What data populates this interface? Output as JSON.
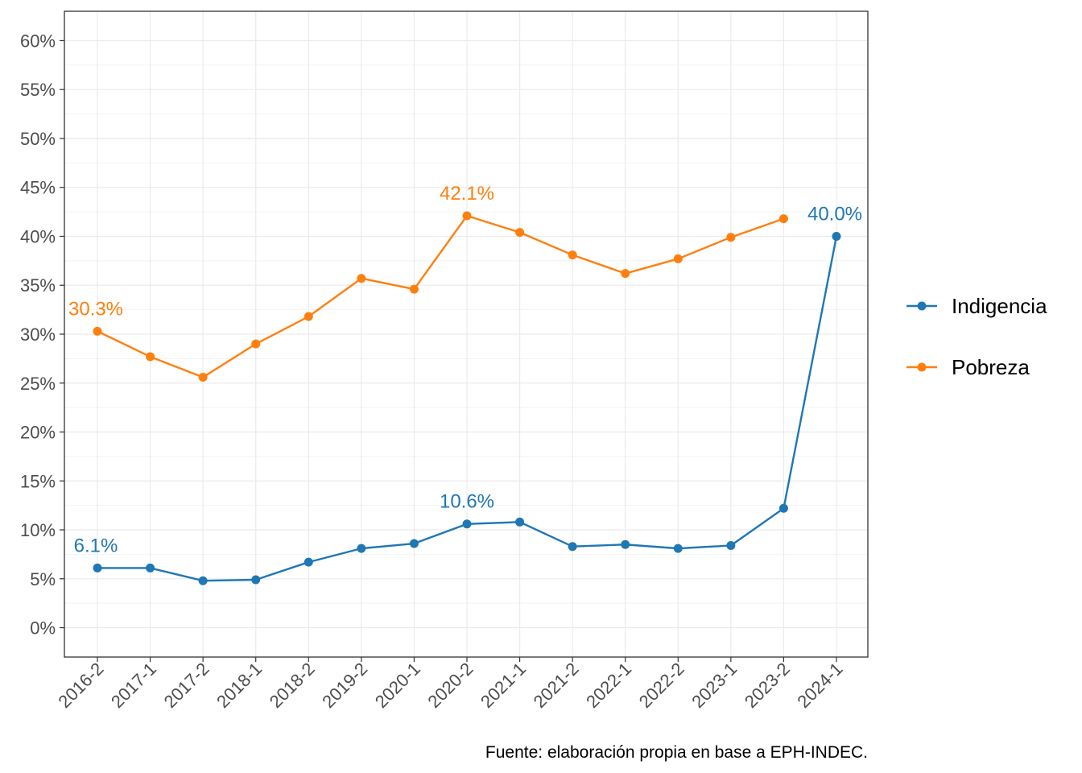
{
  "chart_data": {
    "type": "line",
    "categories": [
      "2016-2",
      "2017-1",
      "2017-2",
      "2018-1",
      "2018-2",
      "2019-2",
      "2020-1",
      "2020-2",
      "2021-1",
      "2021-2",
      "2022-1",
      "2022-2",
      "2023-1",
      "2023-2",
      "2024-1"
    ],
    "series": [
      {
        "name": "Indigencia",
        "color": "#1f77b4",
        "values": [
          6.1,
          6.1,
          4.8,
          4.9,
          6.7,
          8.1,
          8.6,
          10.6,
          10.8,
          8.3,
          8.5,
          8.1,
          8.4,
          12.2,
          40.0
        ]
      },
      {
        "name": "Pobreza",
        "color": "#ff7f0e",
        "values": [
          30.3,
          27.7,
          25.6,
          29.0,
          31.8,
          35.7,
          34.6,
          42.1,
          40.4,
          38.1,
          36.2,
          37.7,
          39.9,
          41.8,
          null
        ]
      }
    ],
    "annotations": [
      {
        "series": 0,
        "index": 0,
        "text": "6.1%"
      },
      {
        "series": 0,
        "index": 7,
        "text": "10.6%"
      },
      {
        "series": 0,
        "index": 14,
        "text": "40.0%"
      },
      {
        "series": 1,
        "index": 0,
        "text": "30.3%"
      },
      {
        "series": 1,
        "index": 7,
        "text": "42.1%"
      }
    ],
    "y_ticks": [
      {
        "value": 0,
        "label": "0%"
      },
      {
        "value": 5,
        "label": "5%"
      },
      {
        "value": 10,
        "label": "10%"
      },
      {
        "value": 15,
        "label": "15%"
      },
      {
        "value": 20,
        "label": "20%"
      },
      {
        "value": 25,
        "label": "25%"
      },
      {
        "value": 30,
        "label": "30%"
      },
      {
        "value": 35,
        "label": "35%"
      },
      {
        "value": 40,
        "label": "40%"
      },
      {
        "value": 45,
        "label": "45%"
      },
      {
        "value": 50,
        "label": "50%"
      },
      {
        "value": 55,
        "label": "55%"
      },
      {
        "value": 60,
        "label": "60%"
      }
    ],
    "ylim": [
      -3,
      63
    ],
    "grid": true,
    "legend_position": "right",
    "title": "",
    "xlabel": "",
    "ylabel": "",
    "caption": "Fuente: elaboración propia en base a EPH-INDEC."
  }
}
